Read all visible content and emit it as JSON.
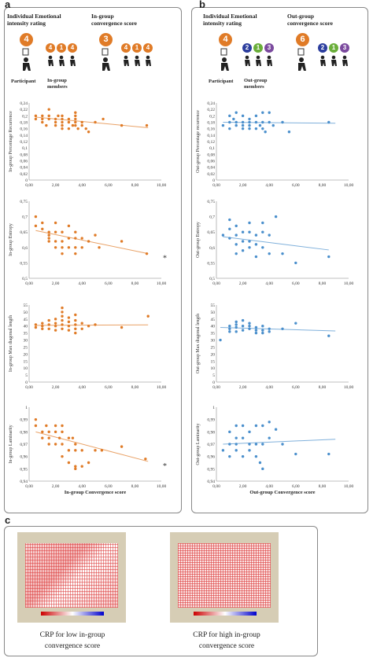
{
  "labels": {
    "a": "a",
    "b": "b",
    "c": "c"
  },
  "headers": {
    "left_rating": "Individual Emotional intensity rating",
    "left_conv": "In-group convergence score",
    "right_rating": "Individual Emotional intensity rating",
    "right_conv": "Out-group convergence score",
    "participant": "Participant",
    "left_members": "In-group members",
    "right_members": "Out-group members"
  },
  "badges": {
    "left_big": "4",
    "left_conv": "3",
    "left_rating_members": [
      "4",
      "1",
      "4"
    ],
    "left_conv_members": [
      "4",
      "1",
      "4"
    ],
    "right_big": "4",
    "right_conv": "6",
    "right_rating_members": [
      "2",
      "1",
      "3"
    ],
    "right_conv_members": [
      "2",
      "1",
      "3"
    ]
  },
  "colors": {
    "orange": "#E07B27",
    "blue": "#4A8FCC",
    "green": "#6AAE3A",
    "purple": "#7B4A9E",
    "navy": "#2C3E9E"
  },
  "xticks": [
    "0,00",
    "2,00",
    "4,00",
    "6,00",
    "8,00",
    "10,00"
  ],
  "xticks_short": [
    "0,00",
    "2,00",
    "4,00",
    "6,00",
    "8,00"
  ],
  "chart_data": [
    {
      "id": "a1",
      "type": "scatter",
      "ylabel": "In-group Percentage Recurrence",
      "xlabel": "",
      "xlim": [
        0,
        10
      ],
      "ylim": [
        0,
        0.24
      ],
      "yticks": [
        "0",
        "0,02",
        "0,04",
        "0,06",
        "0,08",
        "0,1",
        "0,12",
        "0,14",
        "0,16",
        "0,18",
        "0,2",
        "0,22",
        "0,24"
      ],
      "x": [
        0.5,
        0.5,
        1,
        1,
        1,
        1.3,
        1.5,
        1.5,
        1.5,
        2,
        2,
        2,
        2.2,
        2.5,
        2.5,
        2.5,
        2.5,
        2.5,
        3,
        3,
        3,
        3.3,
        3.5,
        3.5,
        3.5,
        3.5,
        3.5,
        3.7,
        4,
        4,
        4.3,
        4.5,
        5,
        5.6,
        7,
        8.9
      ],
      "y": [
        0.2,
        0.19,
        0.19,
        0.18,
        0.2,
        0.17,
        0.22,
        0.2,
        0.19,
        0.18,
        0.17,
        0.19,
        0.2,
        0.16,
        0.17,
        0.18,
        0.19,
        0.2,
        0.16,
        0.18,
        0.19,
        0.17,
        0.21,
        0.2,
        0.18,
        0.17,
        0.19,
        0.16,
        0.18,
        0.17,
        0.16,
        0.15,
        0.18,
        0.19,
        0.17,
        0.17
      ],
      "trend": [
        [
          0.5,
          0.196
        ],
        [
          9,
          0.163
        ]
      ],
      "color": "orange"
    },
    {
      "id": "a2",
      "type": "scatter",
      "ylabel": "In-group Entropy",
      "xlabel": "",
      "xlim": [
        0,
        10
      ],
      "ylim": [
        0.5,
        0.75
      ],
      "yticks": [
        "0,5",
        "0,55",
        "0,6",
        "0,65",
        "0,7",
        "0,75"
      ],
      "x": [
        0.5,
        0.5,
        1,
        1,
        1.5,
        1.5,
        1.5,
        1.5,
        2,
        2,
        2,
        2,
        2.5,
        2.5,
        2.5,
        2.5,
        3,
        3,
        3,
        3.5,
        3.5,
        3.5,
        3.5,
        4,
        4,
        4.5,
        5,
        5.3,
        7,
        8.9
      ],
      "y": [
        0.7,
        0.67,
        0.68,
        0.66,
        0.65,
        0.64,
        0.63,
        0.62,
        0.68,
        0.65,
        0.62,
        0.6,
        0.65,
        0.62,
        0.6,
        0.58,
        0.67,
        0.63,
        0.6,
        0.65,
        0.63,
        0.6,
        0.58,
        0.63,
        0.6,
        0.62,
        0.64,
        0.6,
        0.62,
        0.58
      ],
      "trend": [
        [
          0.5,
          0.655
        ],
        [
          9,
          0.58
        ]
      ],
      "color": "orange",
      "annotation": "*"
    },
    {
      "id": "a3",
      "type": "scatter",
      "ylabel": "In-group Max diagonal length",
      "xlabel": "",
      "xlim": [
        0,
        10
      ],
      "ylim": [
        0,
        55
      ],
      "yticks": [
        "0",
        "5",
        "10",
        "15",
        "20",
        "25",
        "30",
        "35",
        "40",
        "45",
        "50",
        "55"
      ],
      "x": [
        0.5,
        0.5,
        1,
        1,
        1,
        1.5,
        1.5,
        1.5,
        2,
        2,
        2,
        2,
        2.5,
        2.5,
        2.5,
        2.5,
        2.5,
        2.5,
        3,
        3,
        3,
        3,
        3.5,
        3.5,
        3.5,
        3.5,
        3.5,
        4,
        4,
        4.5,
        5,
        7,
        9
      ],
      "y": [
        41,
        39,
        40,
        38,
        42,
        44,
        41,
        38,
        45,
        42,
        40,
        37,
        53,
        50,
        47,
        44,
        41,
        38,
        46,
        43,
        40,
        37,
        48,
        44,
        41,
        38,
        35,
        42,
        38,
        40,
        41,
        39,
        47
      ],
      "trend": [
        [
          0.5,
          40.5
        ],
        [
          9,
          40.8
        ]
      ],
      "color": "orange"
    },
    {
      "id": "a4",
      "type": "scatter",
      "ylabel": "In-group Laminarity",
      "xlabel": "In-group Convergence score",
      "xlim": [
        0,
        10
      ],
      "ylim": [
        0.94,
        1
      ],
      "yticks": [
        "0,94",
        "0,95",
        "0,96",
        "0,97",
        "0,98",
        "0,99",
        "1"
      ],
      "x": [
        0.5,
        0.5,
        1,
        1,
        1.3,
        1.5,
        1.5,
        1.5,
        2,
        2,
        2,
        2.3,
        2.5,
        2.5,
        2.5,
        2.5,
        3,
        3,
        3,
        3.3,
        3.5,
        3.5,
        3.5,
        3.5,
        4,
        4,
        4.5,
        5,
        5.5,
        7,
        8.8
      ],
      "y": [
        0.99,
        0.985,
        0.98,
        0.975,
        0.985,
        0.98,
        0.975,
        0.97,
        0.985,
        0.98,
        0.97,
        0.975,
        0.985,
        0.98,
        0.97,
        0.96,
        0.975,
        0.965,
        0.955,
        0.975,
        0.97,
        0.965,
        0.952,
        0.95,
        0.965,
        0.952,
        0.955,
        0.965,
        0.965,
        0.968,
        0.958
      ],
      "trend": [
        [
          0.5,
          0.98
        ],
        [
          9,
          0.956
        ]
      ],
      "color": "orange",
      "annotation": "*"
    },
    {
      "id": "b1",
      "type": "scatter",
      "ylabel": "Out-group Percentage recurrence",
      "xlabel": "",
      "xlim": [
        0,
        10
      ],
      "ylim": [
        0,
        0.24
      ],
      "yticks": [
        "0",
        "0,02",
        "0,04",
        "0,06",
        "0,08",
        "0,1",
        "0,12",
        "0,14",
        "0,16",
        "0,18",
        "0,2",
        "0,22",
        "0,24"
      ],
      "x": [
        0.5,
        1,
        1,
        1,
        1.3,
        1.5,
        1.5,
        1.5,
        2,
        2,
        2,
        2,
        2.5,
        2.5,
        2.5,
        2.5,
        3,
        3,
        3,
        3.3,
        3.5,
        3.5,
        3.5,
        3.7,
        4,
        4,
        4.3,
        5,
        5.5,
        8.5
      ],
      "y": [
        0.17,
        0.2,
        0.18,
        0.16,
        0.19,
        0.21,
        0.18,
        0.17,
        0.2,
        0.18,
        0.17,
        0.16,
        0.19,
        0.18,
        0.17,
        0.16,
        0.2,
        0.18,
        0.16,
        0.17,
        0.21,
        0.18,
        0.16,
        0.15,
        0.21,
        0.18,
        0.17,
        0.18,
        0.15,
        0.18
      ],
      "trend": [
        [
          0.5,
          0.18
        ],
        [
          9,
          0.177
        ]
      ],
      "color": "blue"
    },
    {
      "id": "b2",
      "type": "scatter",
      "ylabel": "Out-group Entropy",
      "xlabel": "",
      "xlim": [
        0,
        10
      ],
      "ylim": [
        0.5,
        0.75
      ],
      "yticks": [
        "0,5",
        "0,55",
        "0,6",
        "0,65",
        "0,7",
        "0,75"
      ],
      "x": [
        0.5,
        1,
        1,
        1,
        1.5,
        1.5,
        1.5,
        1.5,
        2,
        2,
        2,
        2.5,
        2.5,
        2.5,
        2.5,
        3,
        3,
        3,
        3.5,
        3.5,
        3.5,
        4,
        4,
        4.5,
        5,
        6,
        8.5
      ],
      "y": [
        0.64,
        0.69,
        0.66,
        0.63,
        0.67,
        0.64,
        0.61,
        0.58,
        0.65,
        0.62,
        0.59,
        0.68,
        0.65,
        0.62,
        0.6,
        0.64,
        0.61,
        0.57,
        0.68,
        0.65,
        0.6,
        0.64,
        0.58,
        0.7,
        0.58,
        0.55,
        0.57
      ],
      "trend": [
        [
          0.5,
          0.635
        ],
        [
          8.5,
          0.592
        ]
      ],
      "color": "blue"
    },
    {
      "id": "b3",
      "type": "scatter",
      "ylabel": "Out-group Max diagonal length",
      "xlabel": "",
      "xlim": [
        0,
        10
      ],
      "ylim": [
        0,
        55
      ],
      "yticks": [
        "0",
        "5",
        "10",
        "15",
        "20",
        "25",
        "30",
        "35",
        "40",
        "45",
        "50",
        "55"
      ],
      "x": [
        0.3,
        1,
        1,
        1,
        1.5,
        1.5,
        1.5,
        1.5,
        2,
        2,
        2,
        2.5,
        2.5,
        2.5,
        3,
        3,
        3,
        3.5,
        3.5,
        3.5,
        4,
        4,
        5,
        6,
        8.5
      ],
      "y": [
        30,
        40,
        38,
        36,
        43,
        41,
        39,
        36,
        44,
        40,
        37,
        42,
        40,
        38,
        39,
        37,
        35,
        40,
        37,
        35,
        38,
        36,
        38,
        42,
        33
      ],
      "trend": [
        [
          0.3,
          39
        ],
        [
          9,
          36.5
        ]
      ],
      "color": "blue"
    },
    {
      "id": "b4",
      "type": "scatter",
      "ylabel": "Out-group Laminarity",
      "xlabel": "Out-group Convergence score",
      "xlim": [
        0,
        10
      ],
      "ylim": [
        0.94,
        1
      ],
      "yticks": [
        "0,94",
        "0,95",
        "0,96",
        "0,97",
        "0,98",
        "0,99",
        "1"
      ],
      "x": [
        0.5,
        1,
        1,
        1,
        1.5,
        1.5,
        1.5,
        1.5,
        2,
        2,
        2,
        2.5,
        2.5,
        2.5,
        3,
        3,
        3,
        3.3,
        3.5,
        3.5,
        3.5,
        4,
        4,
        4.5,
        5,
        6,
        8.5
      ],
      "y": [
        0.965,
        0.98,
        0.97,
        0.96,
        0.985,
        0.975,
        0.97,
        0.965,
        0.985,
        0.975,
        0.96,
        0.98,
        0.97,
        0.965,
        0.985,
        0.97,
        0.96,
        0.955,
        0.985,
        0.97,
        0.95,
        0.988,
        0.975,
        0.982,
        0.97,
        0.962,
        0.962
      ],
      "trend": [
        [
          0.5,
          0.97
        ],
        [
          9,
          0.974
        ]
      ],
      "color": "blue"
    }
  ],
  "crp": {
    "low_caption": "CRP for low in-group convergence score",
    "high_caption": "CRP for high in-group convergence score"
  }
}
